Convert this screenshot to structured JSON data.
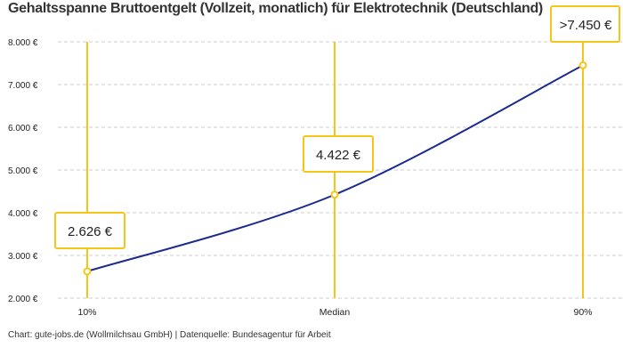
{
  "chart_data": {
    "type": "line",
    "title": "Gehaltsspanne Bruttoentgelt (Vollzeit, monatlich) für Elektrotechnik (Deutschland)",
    "categories": [
      "10%",
      "Median",
      "90%"
    ],
    "values": [
      2626,
      4422,
      7450
    ],
    "data_labels": [
      "2.626 €",
      "4.422 €",
      ">7.450 €"
    ],
    "ylim": [
      2000,
      8000
    ],
    "yticks": [
      2000,
      3000,
      4000,
      5000,
      6000,
      7000,
      8000
    ],
    "ytick_labels": [
      "2.000 €",
      "3.000 €",
      "4.000 €",
      "5.000 €",
      "6.000 €",
      "7.000 €",
      "8.000 €"
    ],
    "grid": "horizontal dashed",
    "colors": {
      "line": "#1b2a8f",
      "marker": "#f5c518",
      "label_border": "#f5c518"
    }
  },
  "footer": "Chart: gute-jobs.de (Wollmilchsau GmbH) | Datenquelle: Bundesagentur für Arbeit"
}
